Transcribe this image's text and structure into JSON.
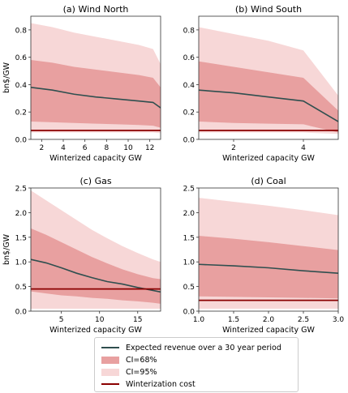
{
  "chart_data": [
    {
      "type": "area",
      "title": "(a) Wind North",
      "xlabel": "Winterized capacity GW",
      "ylabel": "bn$/GW",
      "xlim": [
        1,
        13
      ],
      "ylim": [
        0,
        0.9
      ],
      "xticks": [
        2,
        4,
        6,
        8,
        10,
        12
      ],
      "xtick_labels": [
        "2",
        "4",
        "6",
        "8",
        "10",
        "12"
      ],
      "yticks": [
        0.0,
        0.2,
        0.4,
        0.6,
        0.8
      ],
      "ytick_labels": [
        "0.0",
        "0.2",
        "0.4",
        "0.6",
        "0.8"
      ],
      "x": [
        1,
        3,
        5,
        7,
        9,
        11,
        12.3,
        13
      ],
      "mean": [
        0.38,
        0.36,
        0.33,
        0.31,
        0.295,
        0.28,
        0.27,
        0.23
      ],
      "ci68": [
        [
          0.13,
          0.58
        ],
        [
          0.125,
          0.56
        ],
        [
          0.12,
          0.53
        ],
        [
          0.115,
          0.51
        ],
        [
          0.11,
          0.49
        ],
        [
          0.105,
          0.47
        ],
        [
          0.1,
          0.45
        ],
        [
          0.085,
          0.38
        ]
      ],
      "ci95": [
        [
          0.05,
          0.85
        ],
        [
          0.05,
          0.82
        ],
        [
          0.05,
          0.78
        ],
        [
          0.05,
          0.75
        ],
        [
          0.05,
          0.72
        ],
        [
          0.05,
          0.69
        ],
        [
          0.05,
          0.66
        ],
        [
          0.045,
          0.55
        ]
      ],
      "winterization_cost": 0.065
    },
    {
      "type": "area",
      "title": "(b) Wind South",
      "xlabel": "Winterized capacity GW",
      "ylabel": "",
      "xlim": [
        1,
        5
      ],
      "ylim": [
        0,
        0.9
      ],
      "xticks": [
        2,
        4
      ],
      "xtick_labels": [
        "2",
        "4"
      ],
      "yticks": [
        0.0,
        0.2,
        0.4,
        0.6,
        0.8
      ],
      "ytick_labels": [
        "0.0",
        "0.2",
        "0.4",
        "0.6",
        "0.8"
      ],
      "x": [
        1,
        2,
        3,
        4,
        5
      ],
      "mean": [
        0.36,
        0.34,
        0.31,
        0.28,
        0.13
      ],
      "ci68": [
        [
          0.13,
          0.57
        ],
        [
          0.12,
          0.53
        ],
        [
          0.115,
          0.49
        ],
        [
          0.11,
          0.45
        ],
        [
          0.05,
          0.21
        ]
      ],
      "ci95": [
        [
          0.05,
          0.82
        ],
        [
          0.05,
          0.77
        ],
        [
          0.05,
          0.72
        ],
        [
          0.05,
          0.65
        ],
        [
          0.04,
          0.32
        ]
      ],
      "winterization_cost": 0.065
    },
    {
      "type": "area",
      "title": "(c) Gas",
      "xlabel": "Winterized capacity GW",
      "ylabel": "bn$/GW",
      "xlim": [
        1,
        18
      ],
      "ylim": [
        0,
        2.5
      ],
      "xticks": [
        5,
        10,
        15
      ],
      "xtick_labels": [
        "5",
        "10",
        "15"
      ],
      "yticks": [
        0.0,
        0.5,
        1.0,
        1.5,
        2.0,
        2.5
      ],
      "ytick_labels": [
        "0.0",
        "0.5",
        "1.0",
        "1.5",
        "2.0",
        "2.5"
      ],
      "x": [
        1,
        3,
        5,
        7,
        9,
        11,
        13,
        15,
        17,
        18
      ],
      "mean": [
        1.05,
        0.98,
        0.88,
        0.77,
        0.68,
        0.6,
        0.55,
        0.48,
        0.42,
        0.39
      ],
      "ci68": [
        [
          0.4,
          1.68
        ],
        [
          0.36,
          1.55
        ],
        [
          0.32,
          1.4
        ],
        [
          0.3,
          1.25
        ],
        [
          0.27,
          1.1
        ],
        [
          0.25,
          0.97
        ],
        [
          0.22,
          0.85
        ],
        [
          0.2,
          0.75
        ],
        [
          0.17,
          0.67
        ],
        [
          0.15,
          0.65
        ]
      ],
      "ci95": [
        [
          0.05,
          2.45
        ],
        [
          0.05,
          2.25
        ],
        [
          0.05,
          2.05
        ],
        [
          0.05,
          1.85
        ],
        [
          0.05,
          1.65
        ],
        [
          0.05,
          1.48
        ],
        [
          0.05,
          1.32
        ],
        [
          0.05,
          1.18
        ],
        [
          0.05,
          1.05
        ],
        [
          0.05,
          1.0
        ]
      ],
      "winterization_cost": 0.45
    },
    {
      "type": "area",
      "title": "(d) Coal",
      "xlabel": "Winterized capacity GW",
      "ylabel": "",
      "xlim": [
        1.0,
        3.0
      ],
      "ylim": [
        0,
        2.5
      ],
      "xticks": [
        1.0,
        1.5,
        2.0,
        2.5,
        3.0
      ],
      "xtick_labels": [
        "1.0",
        "1.5",
        "2.0",
        "2.5",
        "3.0"
      ],
      "yticks": [
        0.0,
        0.5,
        1.0,
        1.5,
        2.0,
        2.5
      ],
      "ytick_labels": [
        "0.0",
        "0.5",
        "1.0",
        "1.5",
        "2.0",
        "2.5"
      ],
      "x": [
        1.0,
        1.5,
        2.0,
        2.5,
        3.0
      ],
      "mean": [
        0.95,
        0.92,
        0.88,
        0.82,
        0.77
      ],
      "ci68": [
        [
          0.3,
          1.53
        ],
        [
          0.29,
          1.47
        ],
        [
          0.28,
          1.4
        ],
        [
          0.27,
          1.32
        ],
        [
          0.26,
          1.24
        ]
      ],
      "ci95": [
        [
          0.05,
          2.3
        ],
        [
          0.05,
          2.22
        ],
        [
          0.05,
          2.14
        ],
        [
          0.05,
          2.05
        ],
        [
          0.05,
          1.95
        ]
      ],
      "winterization_cost": 0.22
    }
  ],
  "legend": {
    "items": [
      {
        "label": "Expected revenue over a 30 year period",
        "kind": "line",
        "color": "#2f4f4f"
      },
      {
        "label": "CI=68%",
        "kind": "patch",
        "color": "#e8a0a0"
      },
      {
        "label": "CI=95%",
        "kind": "patch",
        "color": "#f7d7d7"
      },
      {
        "label": "Winterization cost",
        "kind": "line",
        "color": "#8b0000"
      }
    ]
  },
  "colors": {
    "mean_line": "#2f4f4f",
    "ci68": "#e8a0a0",
    "ci95": "#f7d7d7",
    "cost_line": "#8b0000",
    "axes": "#333333"
  }
}
